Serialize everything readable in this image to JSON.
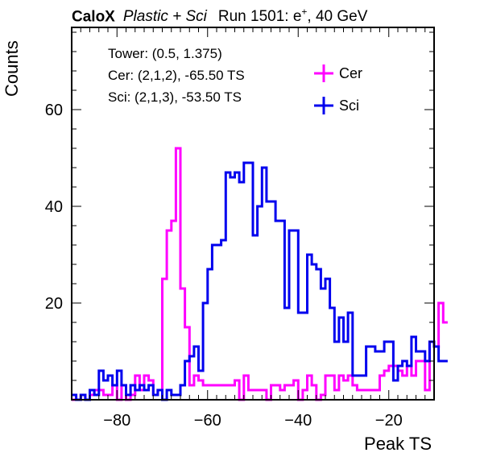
{
  "title": {
    "bold": "CaloX",
    "italic": "Plastic + Sci",
    "run": "Run 1501: e",
    "run_sup": "+",
    "run_tail": ", 40 GeV"
  },
  "annotations": [
    "Tower: (0.5, 1.375)",
    "Cer: (2,1,2), -65.50 TS",
    "Sci: (2,1,3), -53.50 TS"
  ],
  "colors": {
    "cer": "#ff00ff",
    "sci": "#0000ee"
  },
  "chart_data": {
    "type": "histogram",
    "xlabel": "Peak TS",
    "ylabel": "Counts",
    "xlim": [
      -90,
      -10
    ],
    "ylim": [
      0,
      77
    ],
    "xticks": [
      -80,
      -60,
      -40,
      -20
    ],
    "yticks": [
      20,
      40,
      60
    ],
    "bin_width": 1,
    "bin_edges_start": -90,
    "legend": {
      "position": "top-right",
      "entries": [
        "Cer",
        "Sci"
      ]
    },
    "series": [
      {
        "name": "Cer",
        "values": [
          0,
          0,
          1,
          0,
          1,
          2,
          2,
          1,
          1,
          3,
          0,
          3,
          0,
          1,
          5,
          2,
          5,
          4,
          1,
          2,
          25,
          35,
          37,
          52,
          23,
          15,
          3,
          5,
          4,
          3,
          3,
          3,
          3,
          3,
          3,
          3,
          4,
          0,
          5,
          2,
          2,
          2,
          2,
          0,
          3,
          3,
          2,
          3,
          3,
          4,
          0,
          2,
          5,
          3,
          0,
          1,
          5,
          5,
          2,
          5,
          4,
          5,
          3,
          2,
          2,
          2,
          2,
          2,
          5,
          6,
          7,
          7,
          6,
          5,
          7,
          5,
          8,
          8,
          2,
          12,
          11,
          20,
          16
        ]
      },
      {
        "name": "Sci",
        "values": [
          1,
          0,
          1,
          0,
          2,
          1,
          6,
          4,
          5,
          3,
          6,
          3,
          1,
          3,
          2,
          3,
          2,
          3,
          1,
          2,
          0,
          2,
          1,
          1,
          3,
          8,
          9,
          11,
          6,
          20,
          27,
          32,
          32,
          33,
          47,
          46,
          47,
          45,
          49,
          49,
          34,
          40,
          48,
          41,
          41,
          37,
          37,
          19,
          35,
          35,
          18,
          18,
          30,
          28,
          27,
          23,
          25,
          19,
          12,
          17,
          12,
          18,
          5,
          5,
          5,
          11,
          11,
          10,
          10,
          12,
          12,
          4,
          7,
          8,
          7,
          13,
          10,
          10,
          8,
          12,
          11,
          8,
          8
        ]
      }
    ]
  }
}
